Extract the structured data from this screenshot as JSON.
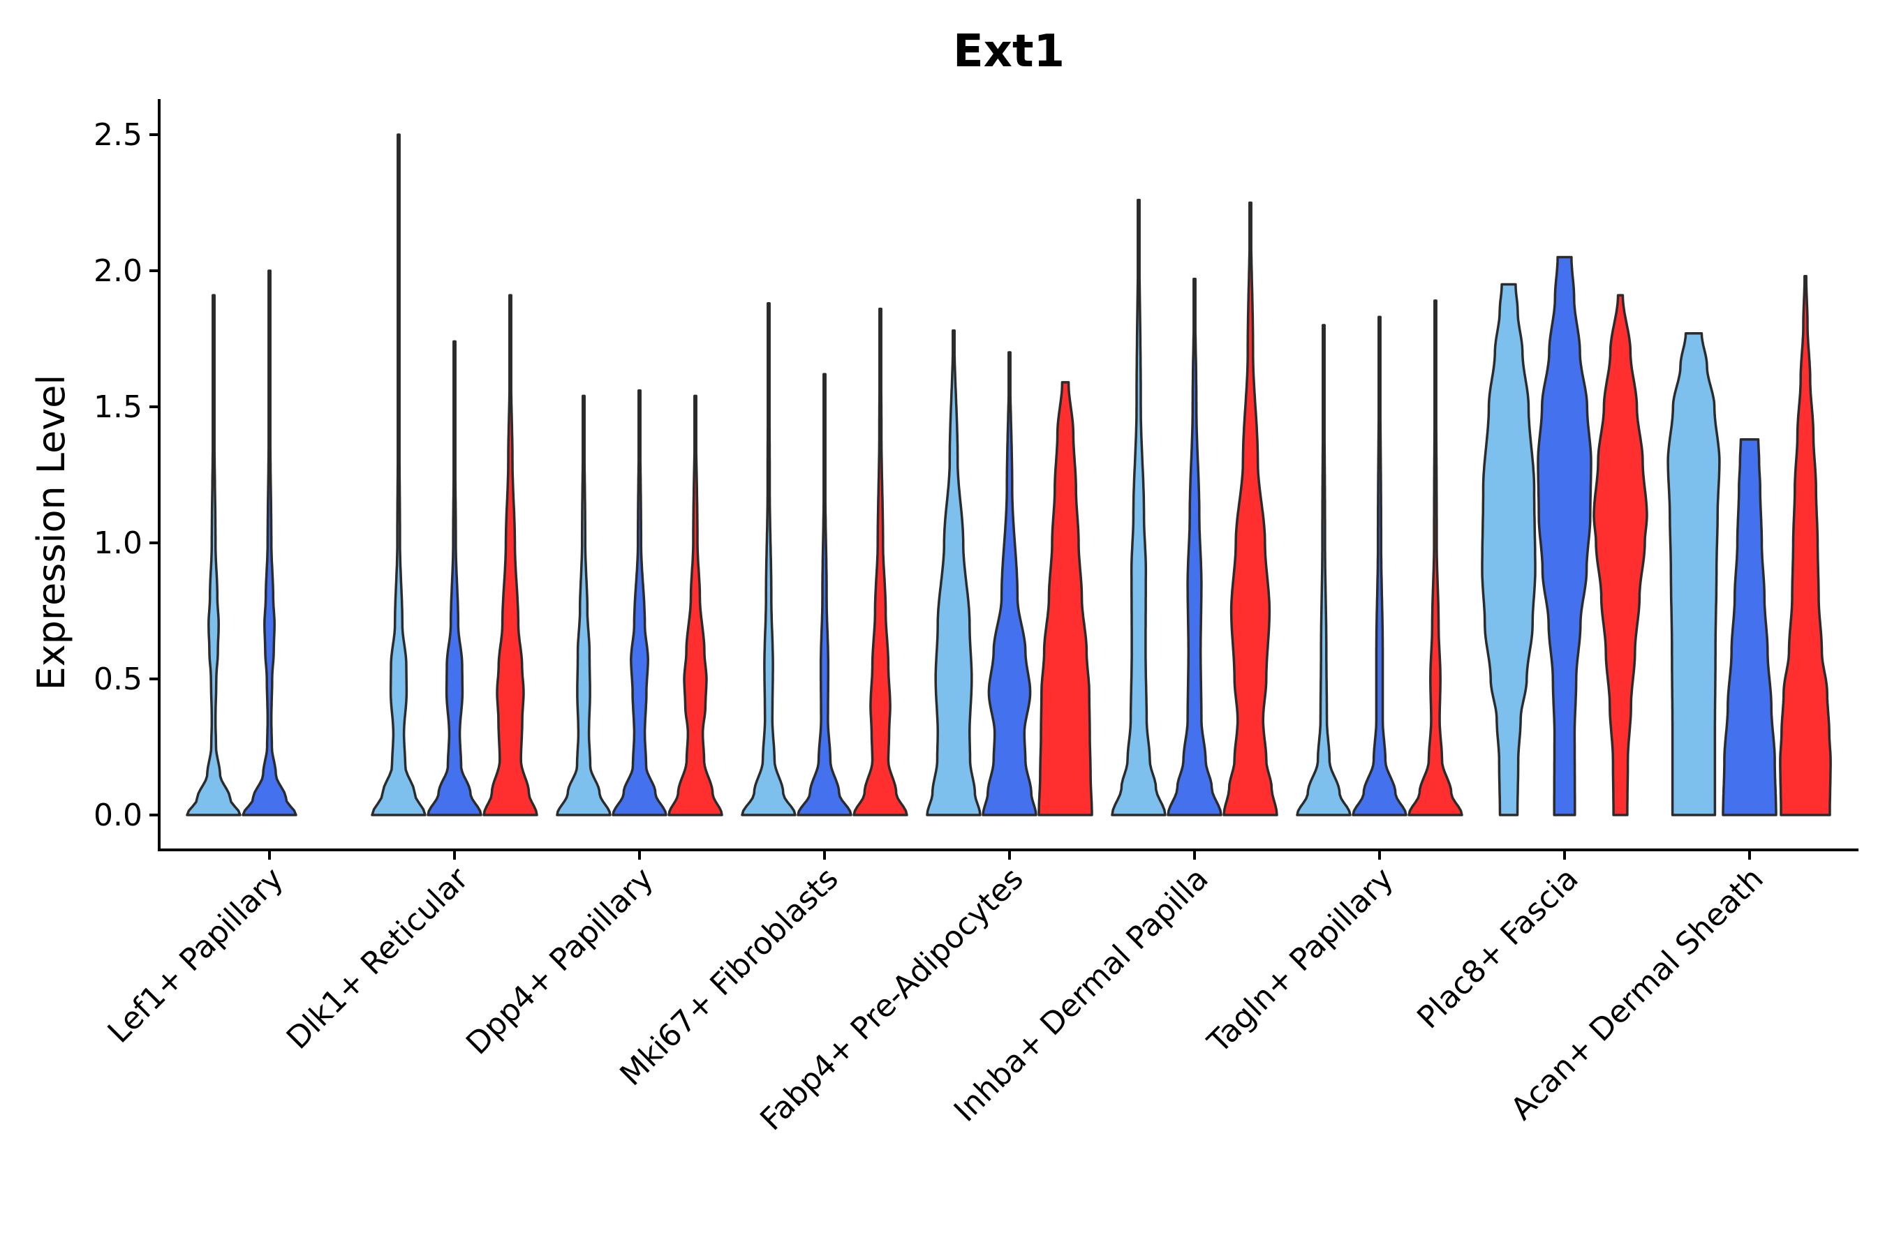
{
  "chart_data": {
    "type": "violin",
    "title": "Ext1",
    "xlabel": "",
    "ylabel": "Expression Level",
    "ylim": [
      -0.12,
      2.62
    ],
    "yticks": [
      0.0,
      0.5,
      1.0,
      1.5,
      2.0,
      2.5
    ],
    "ytick_labels": [
      "0.0",
      "0.5",
      "1.0",
      "1.5",
      "2.0",
      "2.5"
    ],
    "legend": "none",
    "colors": {
      "group1": "#7dc0ee",
      "group2": "#4472ee",
      "group3": "#ff2f2f"
    },
    "categories": [
      "Lef1+ Papillary",
      "Dlk1+ Reticular",
      "Dpp4+ Papillary",
      "Mki67+ Fibroblasts",
      "Fabp4+ Pre-Adipocytes",
      "Inhba+ Dermal Papilla",
      "Tagln+ Papillary",
      "Plac8+ Fascia",
      "Acan+ Dermal Sheath"
    ],
    "violins": [
      {
        "category": "Lef1+ Papillary",
        "group": "group1",
        "max": 1.91,
        "min": 0,
        "profile": [
          [
            0,
            1.0
          ],
          [
            0.06,
            0.62
          ],
          [
            0.15,
            0.24
          ],
          [
            0.25,
            0.09
          ],
          [
            0.35,
            0.07
          ],
          [
            0.5,
            0.1
          ],
          [
            0.6,
            0.16
          ],
          [
            0.7,
            0.19
          ],
          [
            0.8,
            0.14
          ],
          [
            1.0,
            0.07
          ],
          [
            1.4,
            0.03
          ],
          [
            1.91,
            0.01
          ]
        ]
      },
      {
        "category": "Lef1+ Papillary",
        "group": "group2",
        "max": 2.0,
        "min": 0,
        "profile": [
          [
            0,
            1.0
          ],
          [
            0.06,
            0.62
          ],
          [
            0.15,
            0.24
          ],
          [
            0.25,
            0.09
          ],
          [
            0.35,
            0.07
          ],
          [
            0.5,
            0.1
          ],
          [
            0.6,
            0.16
          ],
          [
            0.7,
            0.19
          ],
          [
            0.8,
            0.14
          ],
          [
            1.0,
            0.07
          ],
          [
            1.4,
            0.03
          ],
          [
            2.0,
            0.01
          ]
        ]
      },
      {
        "category": "Dlk1+ Reticular",
        "group": "group1",
        "max": 2.5,
        "min": 0,
        "profile": [
          [
            0,
            1.0
          ],
          [
            0.08,
            0.6
          ],
          [
            0.18,
            0.25
          ],
          [
            0.3,
            0.2
          ],
          [
            0.45,
            0.3
          ],
          [
            0.55,
            0.29
          ],
          [
            0.7,
            0.14
          ],
          [
            1.0,
            0.05
          ],
          [
            1.5,
            0.02
          ],
          [
            2.5,
            0.01
          ]
        ]
      },
      {
        "category": "Dlk1+ Reticular",
        "group": "group2",
        "max": 1.74,
        "min": 0,
        "profile": [
          [
            0,
            1.0
          ],
          [
            0.08,
            0.6
          ],
          [
            0.18,
            0.25
          ],
          [
            0.3,
            0.2
          ],
          [
            0.45,
            0.3
          ],
          [
            0.55,
            0.29
          ],
          [
            0.7,
            0.14
          ],
          [
            1.0,
            0.05
          ],
          [
            1.4,
            0.02
          ],
          [
            1.74,
            0.01
          ]
        ]
      },
      {
        "category": "Dlk1+ Reticular",
        "group": "group3",
        "max": 1.91,
        "min": 0,
        "profile": [
          [
            0,
            1.0
          ],
          [
            0.08,
            0.7
          ],
          [
            0.2,
            0.4
          ],
          [
            0.35,
            0.45
          ],
          [
            0.45,
            0.5
          ],
          [
            0.55,
            0.44
          ],
          [
            0.7,
            0.3
          ],
          [
            1.0,
            0.17
          ],
          [
            1.3,
            0.08
          ],
          [
            1.6,
            0.03
          ],
          [
            1.91,
            0.01
          ]
        ]
      },
      {
        "category": "Dpp4+ Papillary",
        "group": "group1",
        "max": 1.54,
        "min": 0,
        "profile": [
          [
            0,
            1.0
          ],
          [
            0.08,
            0.6
          ],
          [
            0.18,
            0.25
          ],
          [
            0.3,
            0.2
          ],
          [
            0.45,
            0.24
          ],
          [
            0.6,
            0.22
          ],
          [
            0.75,
            0.14
          ],
          [
            1.0,
            0.06
          ],
          [
            1.54,
            0.01
          ]
        ]
      },
      {
        "category": "Dpp4+ Papillary",
        "group": "group2",
        "max": 1.56,
        "min": 0,
        "profile": [
          [
            0,
            1.0
          ],
          [
            0.08,
            0.6
          ],
          [
            0.18,
            0.25
          ],
          [
            0.3,
            0.2
          ],
          [
            0.45,
            0.26
          ],
          [
            0.57,
            0.32
          ],
          [
            0.7,
            0.2
          ],
          [
            1.0,
            0.06
          ],
          [
            1.56,
            0.01
          ]
        ]
      },
      {
        "category": "Dpp4+ Papillary",
        "group": "group3",
        "max": 1.54,
        "min": 0,
        "profile": [
          [
            0,
            1.0
          ],
          [
            0.08,
            0.65
          ],
          [
            0.2,
            0.33
          ],
          [
            0.3,
            0.28
          ],
          [
            0.4,
            0.38
          ],
          [
            0.5,
            0.42
          ],
          [
            0.6,
            0.34
          ],
          [
            0.8,
            0.17
          ],
          [
            1.0,
            0.08
          ],
          [
            1.54,
            0.01
          ]
        ]
      },
      {
        "category": "Mki67+ Fibroblasts",
        "group": "group1",
        "max": 1.88,
        "min": 0,
        "profile": [
          [
            0,
            1.0
          ],
          [
            0.08,
            0.55
          ],
          [
            0.2,
            0.22
          ],
          [
            0.35,
            0.14
          ],
          [
            0.55,
            0.16
          ],
          [
            0.8,
            0.1
          ],
          [
            1.2,
            0.04
          ],
          [
            1.88,
            0.01
          ]
        ]
      },
      {
        "category": "Mki67+ Fibroblasts",
        "group": "group2",
        "max": 1.62,
        "min": 0,
        "profile": [
          [
            0,
            1.0
          ],
          [
            0.08,
            0.55
          ],
          [
            0.2,
            0.22
          ],
          [
            0.35,
            0.13
          ],
          [
            0.55,
            0.14
          ],
          [
            0.8,
            0.08
          ],
          [
            1.2,
            0.03
          ],
          [
            1.62,
            0.01
          ]
        ]
      },
      {
        "category": "Mki67+ Fibroblasts",
        "group": "group3",
        "max": 1.86,
        "min": 0,
        "profile": [
          [
            0,
            1.0
          ],
          [
            0.08,
            0.6
          ],
          [
            0.2,
            0.3
          ],
          [
            0.3,
            0.33
          ],
          [
            0.4,
            0.37
          ],
          [
            0.55,
            0.3
          ],
          [
            0.75,
            0.2
          ],
          [
            1.0,
            0.1
          ],
          [
            1.4,
            0.04
          ],
          [
            1.86,
            0.01
          ]
        ]
      },
      {
        "category": "Fabp4+ Pre-Adipocytes",
        "group": "group1",
        "max": 1.78,
        "min": 0,
        "profile": [
          [
            0,
            1.0
          ],
          [
            0.08,
            0.8
          ],
          [
            0.2,
            0.62
          ],
          [
            0.3,
            0.6
          ],
          [
            0.5,
            0.68
          ],
          [
            0.7,
            0.6
          ],
          [
            1.0,
            0.36
          ],
          [
            1.3,
            0.15
          ],
          [
            1.78,
            0.02
          ]
        ]
      },
      {
        "category": "Fabp4+ Pre-Adipocytes",
        "group": "group2",
        "max": 1.7,
        "min": 0,
        "profile": [
          [
            0,
            1.0
          ],
          [
            0.08,
            0.82
          ],
          [
            0.2,
            0.6
          ],
          [
            0.3,
            0.56
          ],
          [
            0.45,
            0.78
          ],
          [
            0.6,
            0.6
          ],
          [
            0.8,
            0.3
          ],
          [
            1.2,
            0.1
          ],
          [
            1.7,
            0.01
          ]
        ]
      },
      {
        "category": "Fabp4+ Pre-Adipocytes",
        "group": "group3",
        "max": 1.59,
        "min": 0,
        "profile": [
          [
            0,
            1.0
          ],
          [
            0.15,
            0.95
          ],
          [
            0.3,
            0.92
          ],
          [
            0.45,
            0.9
          ],
          [
            0.6,
            0.8
          ],
          [
            0.8,
            0.62
          ],
          [
            1.0,
            0.5
          ],
          [
            1.2,
            0.4
          ],
          [
            1.4,
            0.3
          ],
          [
            1.59,
            0.12
          ]
        ]
      },
      {
        "category": "Inhba+ Dermal Papilla",
        "group": "group1",
        "max": 2.26,
        "min": 0,
        "profile": [
          [
            0,
            1.0
          ],
          [
            0.1,
            0.65
          ],
          [
            0.2,
            0.42
          ],
          [
            0.35,
            0.3
          ],
          [
            0.6,
            0.26
          ],
          [
            0.9,
            0.27
          ],
          [
            1.1,
            0.2
          ],
          [
            1.5,
            0.08
          ],
          [
            2.26,
            0.01
          ]
        ]
      },
      {
        "category": "Inhba+ Dermal Papilla",
        "group": "group2",
        "max": 1.97,
        "min": 0,
        "profile": [
          [
            0,
            1.0
          ],
          [
            0.1,
            0.65
          ],
          [
            0.2,
            0.42
          ],
          [
            0.35,
            0.26
          ],
          [
            0.6,
            0.23
          ],
          [
            0.85,
            0.26
          ],
          [
            1.1,
            0.18
          ],
          [
            1.5,
            0.07
          ],
          [
            1.97,
            0.01
          ]
        ]
      },
      {
        "category": "Inhba+ Dermal Papilla",
        "group": "group3",
        "max": 2.25,
        "min": 0,
        "profile": [
          [
            0,
            1.0
          ],
          [
            0.1,
            0.8
          ],
          [
            0.2,
            0.6
          ],
          [
            0.35,
            0.48
          ],
          [
            0.5,
            0.6
          ],
          [
            0.75,
            0.72
          ],
          [
            1.0,
            0.55
          ],
          [
            1.3,
            0.28
          ],
          [
            1.7,
            0.1
          ],
          [
            2.25,
            0.01
          ]
        ]
      },
      {
        "category": "Tagln+ Papillary",
        "group": "group1",
        "max": 1.8,
        "min": 0,
        "profile": [
          [
            0,
            1.0
          ],
          [
            0.08,
            0.6
          ],
          [
            0.2,
            0.22
          ],
          [
            0.35,
            0.12
          ],
          [
            0.6,
            0.1
          ],
          [
            1.0,
            0.05
          ],
          [
            1.8,
            0.01
          ]
        ]
      },
      {
        "category": "Tagln+ Papillary",
        "group": "group2",
        "max": 1.83,
        "min": 0,
        "profile": [
          [
            0,
            1.0
          ],
          [
            0.08,
            0.6
          ],
          [
            0.2,
            0.22
          ],
          [
            0.35,
            0.12
          ],
          [
            0.6,
            0.12
          ],
          [
            1.0,
            0.06
          ],
          [
            1.83,
            0.01
          ]
        ]
      },
      {
        "category": "Tagln+ Papillary",
        "group": "group3",
        "max": 1.89,
        "min": 0,
        "profile": [
          [
            0,
            1.0
          ],
          [
            0.08,
            0.6
          ],
          [
            0.2,
            0.25
          ],
          [
            0.35,
            0.16
          ],
          [
            0.5,
            0.19
          ],
          [
            0.7,
            0.12
          ],
          [
            1.0,
            0.05
          ],
          [
            1.89,
            0.01
          ]
        ]
      },
      {
        "category": "Plac8+ Fascia",
        "group": "group1",
        "max": 1.95,
        "min": 0,
        "profile": [
          [
            0,
            0.33
          ],
          [
            0.2,
            0.36
          ],
          [
            0.35,
            0.45
          ],
          [
            0.5,
            0.68
          ],
          [
            0.7,
            0.9
          ],
          [
            0.9,
            1.0
          ],
          [
            1.2,
            0.96
          ],
          [
            1.5,
            0.75
          ],
          [
            1.7,
            0.52
          ],
          [
            1.85,
            0.34
          ],
          [
            1.95,
            0.26
          ]
        ]
      },
      {
        "category": "Plac8+ Fascia",
        "group": "group2",
        "max": 2.05,
        "min": 0,
        "profile": [
          [
            0,
            0.39
          ],
          [
            0.3,
            0.38
          ],
          [
            0.5,
            0.44
          ],
          [
            0.7,
            0.6
          ],
          [
            0.9,
            0.83
          ],
          [
            1.1,
            0.97
          ],
          [
            1.3,
            1.0
          ],
          [
            1.5,
            0.85
          ],
          [
            1.7,
            0.58
          ],
          [
            1.9,
            0.36
          ],
          [
            2.05,
            0.26
          ]
        ]
      },
      {
        "category": "Plac8+ Fascia",
        "group": "group3",
        "max": 1.91,
        "min": 0,
        "profile": [
          [
            0,
            0.26
          ],
          [
            0.2,
            0.28
          ],
          [
            0.4,
            0.4
          ],
          [
            0.6,
            0.55
          ],
          [
            0.8,
            0.72
          ],
          [
            1.0,
            0.92
          ],
          [
            1.1,
            1.0
          ],
          [
            1.3,
            0.84
          ],
          [
            1.5,
            0.62
          ],
          [
            1.7,
            0.38
          ],
          [
            1.91,
            0.09
          ]
        ]
      },
      {
        "category": "Acan+ Dermal Sheath",
        "group": "group1",
        "max": 1.77,
        "min": 0,
        "profile": [
          [
            0,
            0.8
          ],
          [
            0.3,
            0.8
          ],
          [
            0.6,
            0.82
          ],
          [
            0.9,
            0.86
          ],
          [
            1.1,
            0.9
          ],
          [
            1.3,
            0.97
          ],
          [
            1.5,
            0.78
          ],
          [
            1.65,
            0.5
          ],
          [
            1.77,
            0.3
          ]
        ]
      },
      {
        "category": "Acan+ Dermal Sheath",
        "group": "group2",
        "max": 1.38,
        "min": 0,
        "profile": [
          [
            0,
            1.0
          ],
          [
            0.2,
            0.95
          ],
          [
            0.4,
            0.82
          ],
          [
            0.6,
            0.68
          ],
          [
            0.8,
            0.56
          ],
          [
            1.0,
            0.46
          ],
          [
            1.2,
            0.4
          ],
          [
            1.3,
            0.36
          ],
          [
            1.38,
            0.33
          ]
        ]
      },
      {
        "category": "Acan+ Dermal Sheath",
        "group": "group3",
        "max": 1.98,
        "min": 0,
        "profile": [
          [
            0,
            0.92
          ],
          [
            0.2,
            0.95
          ],
          [
            0.3,
            0.9
          ],
          [
            0.45,
            0.82
          ],
          [
            0.6,
            0.62
          ],
          [
            0.8,
            0.5
          ],
          [
            1.0,
            0.46
          ],
          [
            1.2,
            0.4
          ],
          [
            1.4,
            0.3
          ],
          [
            1.6,
            0.18
          ],
          [
            1.8,
            0.08
          ],
          [
            1.98,
            0.03
          ]
        ]
      }
    ]
  }
}
